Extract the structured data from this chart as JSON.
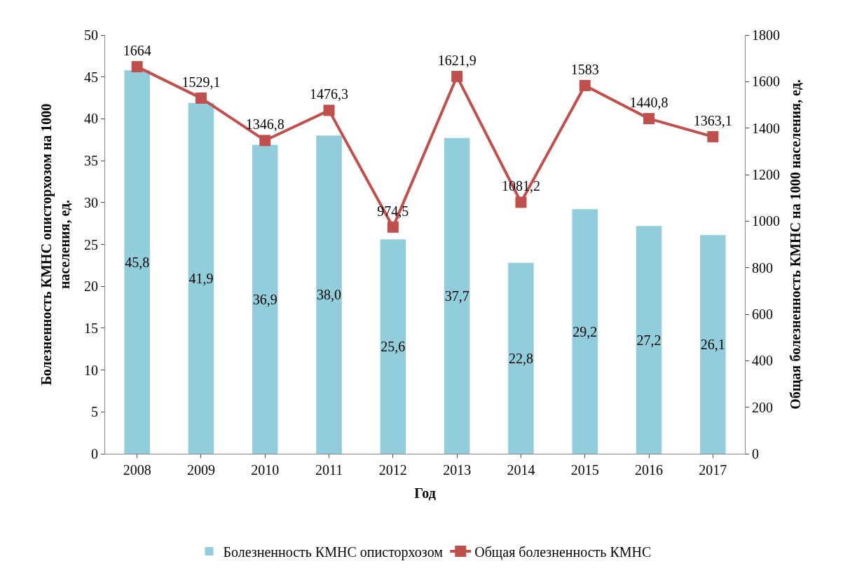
{
  "chart_data": {
    "type": "bar",
    "xlabel": "Год",
    "ylabel": "Болезненность КМНС описторхозом на 1000 населения, ед.",
    "y2label": "Общая болезненность КМНС на 1000 населения, ед.",
    "categories": [
      "2008",
      "2009",
      "2010",
      "2011",
      "2012",
      "2013",
      "2014",
      "2015",
      "2016",
      "2017"
    ],
    "series": [
      {
        "name": "Болезненность КМНС описторхозом",
        "color": "#92cddc",
        "values": [
          45.8,
          41.9,
          36.9,
          38.0,
          25.6,
          37.7,
          22.8,
          29.2,
          27.2,
          26.1
        ],
        "value_labels": [
          "45,8",
          "41,9",
          "36,9",
          "38,0",
          "25,6",
          "37,7",
          "22,8",
          "29,2",
          "27,2",
          "26,1"
        ]
      },
      {
        "name": "Общая болезненность КМНС",
        "type": "line",
        "axis": "y2",
        "color": "#c0504d",
        "marker": "square",
        "values": [
          1664,
          1529.1,
          1346.8,
          1476.3,
          974.5,
          1621.9,
          1081.2,
          1583,
          1440.8,
          1363.1
        ],
        "value_labels": [
          "1664",
          "1529,1",
          "1346,8",
          "1476,3",
          "974,5",
          "1621,9",
          "1081,2",
          "1583",
          "1440,8",
          "1363,1"
        ]
      }
    ],
    "ylim": [
      0,
      50
    ],
    "yticks": [
      0,
      5,
      10,
      15,
      20,
      25,
      30,
      35,
      40,
      45,
      50
    ],
    "y2lim": [
      0,
      1800
    ],
    "y2ticks": [
      0,
      200,
      400,
      600,
      800,
      1000,
      1200,
      1400,
      1600,
      1800
    ],
    "legend": "bottom"
  }
}
